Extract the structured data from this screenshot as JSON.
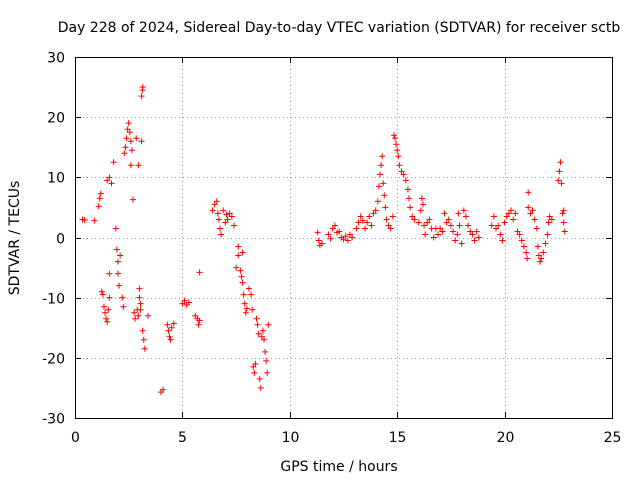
{
  "chart_data": {
    "type": "scatter",
    "title": "Day 228 of 2024, Sidereal Day-to-day VTEC variation (SDTVAR) for receiver sctb",
    "xlabel": "GPS time / hours",
    "ylabel": "SDTVAR / TECUs",
    "xlim": [
      0,
      25
    ],
    "ylim": [
      -30,
      30
    ],
    "xticks": [
      "0",
      "5",
      "10",
      "15",
      "20",
      "25"
    ],
    "yticks": [
      "-30",
      "-20",
      "-10",
      "0",
      "10",
      "20",
      "30"
    ],
    "grid": true,
    "marker": "plus",
    "color": "#ff0000",
    "series": [
      {
        "name": "SDTVAR",
        "points": [
          [
            0.35,
            3.0
          ],
          [
            0.45,
            2.9
          ],
          [
            0.9,
            2.8
          ],
          [
            1.1,
            5.2
          ],
          [
            1.15,
            6.5
          ],
          [
            1.2,
            7.3
          ],
          [
            1.25,
            -9.0
          ],
          [
            1.3,
            -9.5
          ],
          [
            1.35,
            -11.5
          ],
          [
            1.4,
            -12.5
          ],
          [
            1.45,
            -13.5
          ],
          [
            1.5,
            -14.0
          ],
          [
            1.55,
            -12.0
          ],
          [
            1.6,
            -10.0
          ],
          [
            1.6,
            -6.0
          ],
          [
            1.5,
            9.5
          ],
          [
            1.6,
            10.0
          ],
          [
            1.7,
            9.0
          ],
          [
            1.8,
            12.5
          ],
          [
            1.9,
            1.5
          ],
          [
            1.95,
            -2.0
          ],
          [
            2.0,
            -4.0
          ],
          [
            2.0,
            -6.0
          ],
          [
            2.05,
            -8.0
          ],
          [
            2.1,
            -3.0
          ],
          [
            2.2,
            -10.0
          ],
          [
            2.25,
            -11.5
          ],
          [
            2.3,
            14.0
          ],
          [
            2.35,
            15.0
          ],
          [
            2.4,
            16.5
          ],
          [
            2.45,
            18.0
          ],
          [
            2.5,
            19.0
          ],
          [
            2.55,
            17.5
          ],
          [
            2.6,
            16.0
          ],
          [
            2.65,
            14.5
          ],
          [
            2.6,
            12.0
          ],
          [
            2.7,
            6.3
          ],
          [
            2.75,
            -12.5
          ],
          [
            2.8,
            -13.5
          ],
          [
            2.85,
            16.5
          ],
          [
            2.9,
            -12.0
          ],
          [
            2.95,
            -13.0
          ],
          [
            2.95,
            12.0
          ],
          [
            3.0,
            -8.5
          ],
          [
            3.0,
            -10.0
          ],
          [
            3.05,
            -11.0
          ],
          [
            3.05,
            -12.0
          ],
          [
            3.1,
            23.5
          ],
          [
            3.15,
            24.5
          ],
          [
            3.15,
            25.0
          ],
          [
            3.1,
            16.0
          ],
          [
            3.15,
            -15.5
          ],
          [
            3.2,
            -17.0
          ],
          [
            3.25,
            -18.5
          ],
          [
            3.4,
            -13.0
          ],
          [
            4.0,
            -25.7
          ],
          [
            4.1,
            -25.3
          ],
          [
            4.3,
            -14.5
          ],
          [
            4.35,
            -15.5
          ],
          [
            4.4,
            -16.5
          ],
          [
            4.45,
            -17.0
          ],
          [
            4.5,
            -15.0
          ],
          [
            4.6,
            -14.3
          ],
          [
            5.0,
            -11.0
          ],
          [
            5.1,
            -10.5
          ],
          [
            5.2,
            -11.2
          ],
          [
            5.3,
            -10.8
          ],
          [
            5.6,
            -13.0
          ],
          [
            5.7,
            -13.5
          ],
          [
            5.75,
            -14.5
          ],
          [
            5.8,
            -13.8
          ],
          [
            5.8,
            -5.8
          ],
          [
            6.4,
            4.5
          ],
          [
            6.5,
            5.5
          ],
          [
            6.6,
            6.0
          ],
          [
            6.65,
            4.0
          ],
          [
            6.7,
            3.0
          ],
          [
            6.75,
            1.5
          ],
          [
            6.8,
            0.5
          ],
          [
            6.9,
            4.5
          ],
          [
            7.0,
            2.5
          ],
          [
            7.05,
            3.8
          ],
          [
            7.1,
            3.0
          ],
          [
            7.2,
            4.0
          ],
          [
            7.3,
            3.5
          ],
          [
            7.4,
            2.0
          ],
          [
            7.5,
            -5.0
          ],
          [
            7.6,
            -3.0
          ],
          [
            7.6,
            -1.5
          ],
          [
            7.7,
            -5.5
          ],
          [
            7.75,
            -6.5
          ],
          [
            7.8,
            -7.5
          ],
          [
            7.8,
            -2.5
          ],
          [
            7.85,
            -9.5
          ],
          [
            7.9,
            -11.0
          ],
          [
            7.95,
            -12.5
          ],
          [
            8.0,
            -11.8
          ],
          [
            8.1,
            -8.5
          ],
          [
            8.2,
            -9.5
          ],
          [
            8.25,
            -12.0
          ],
          [
            8.3,
            -21.5
          ],
          [
            8.35,
            -22.5
          ],
          [
            8.4,
            -21.0
          ],
          [
            8.45,
            -13.5
          ],
          [
            8.5,
            -14.5
          ],
          [
            8.55,
            -16.0
          ],
          [
            8.6,
            -23.5
          ],
          [
            8.65,
            -25.0
          ],
          [
            8.7,
            -16.5
          ],
          [
            8.75,
            -15.5
          ],
          [
            8.8,
            -17.0
          ],
          [
            8.85,
            -19.0
          ],
          [
            8.9,
            -20.5
          ],
          [
            8.95,
            -22.5
          ],
          [
            9.0,
            -14.5
          ],
          [
            11.3,
            0.8
          ],
          [
            11.35,
            -0.5
          ],
          [
            11.4,
            -1.3
          ],
          [
            11.5,
            -1.0
          ],
          [
            11.8,
            0.5
          ],
          [
            11.9,
            -0.2
          ],
          [
            12.0,
            1.5
          ],
          [
            12.1,
            2.0
          ],
          [
            12.2,
            0.8
          ],
          [
            12.3,
            1.0
          ],
          [
            12.4,
            0.0
          ],
          [
            12.5,
            -0.3
          ],
          [
            12.6,
            0.2
          ],
          [
            12.7,
            -0.5
          ],
          [
            12.8,
            0.5
          ],
          [
            12.9,
            0.0
          ],
          [
            13.1,
            1.5
          ],
          [
            13.2,
            2.5
          ],
          [
            13.3,
            3.5
          ],
          [
            13.4,
            2.8
          ],
          [
            13.5,
            1.5
          ],
          [
            13.6,
            2.5
          ],
          [
            13.7,
            3.5
          ],
          [
            13.8,
            2.0
          ],
          [
            13.9,
            4.0
          ],
          [
            14.0,
            4.5
          ],
          [
            14.1,
            6.0
          ],
          [
            14.15,
            8.5
          ],
          [
            14.2,
            10.5
          ],
          [
            14.25,
            12.0
          ],
          [
            14.3,
            13.5
          ],
          [
            14.35,
            9.0
          ],
          [
            14.4,
            7.0
          ],
          [
            14.45,
            5.0
          ],
          [
            14.5,
            3.0
          ],
          [
            14.6,
            2.0
          ],
          [
            14.7,
            1.5
          ],
          [
            14.8,
            3.5
          ],
          [
            14.85,
            17.0
          ],
          [
            14.9,
            16.5
          ],
          [
            14.95,
            15.5
          ],
          [
            15.0,
            14.5
          ],
          [
            15.05,
            13.5
          ],
          [
            15.1,
            12.0
          ],
          [
            15.2,
            11.0
          ],
          [
            15.3,
            10.5
          ],
          [
            15.4,
            9.5
          ],
          [
            15.5,
            8.0
          ],
          [
            15.55,
            6.5
          ],
          [
            15.6,
            5.0
          ],
          [
            15.7,
            3.5
          ],
          [
            15.8,
            3.0
          ],
          [
            16.0,
            2.5
          ],
          [
            16.1,
            4.5
          ],
          [
            16.15,
            6.5
          ],
          [
            16.2,
            5.5
          ],
          [
            16.25,
            2.0
          ],
          [
            16.3,
            0.5
          ],
          [
            16.4,
            2.5
          ],
          [
            16.5,
            3.0
          ],
          [
            16.6,
            1.5
          ],
          [
            16.7,
            0.0
          ],
          [
            16.8,
            1.5
          ],
          [
            16.9,
            0.5
          ],
          [
            17.0,
            1.5
          ],
          [
            17.1,
            1.0
          ],
          [
            17.2,
            4.0
          ],
          [
            17.3,
            2.5
          ],
          [
            17.4,
            3.0
          ],
          [
            17.5,
            2.0
          ],
          [
            17.6,
            1.0
          ],
          [
            17.7,
            -0.5
          ],
          [
            17.8,
            0.5
          ],
          [
            17.85,
            4.0
          ],
          [
            17.9,
            2.0
          ],
          [
            18.0,
            -1.0
          ],
          [
            18.1,
            4.5
          ],
          [
            18.2,
            3.5
          ],
          [
            18.3,
            2.0
          ],
          [
            18.4,
            1.0
          ],
          [
            18.5,
            0.5
          ],
          [
            18.6,
            -0.5
          ],
          [
            18.7,
            1.0
          ],
          [
            18.8,
            0.0
          ],
          [
            19.4,
            2.0
          ],
          [
            19.5,
            3.5
          ],
          [
            19.6,
            1.5
          ],
          [
            19.7,
            2.0
          ],
          [
            19.8,
            0.5
          ],
          [
            19.9,
            -0.5
          ],
          [
            20.0,
            2.5
          ],
          [
            20.1,
            3.5
          ],
          [
            20.2,
            4.0
          ],
          [
            20.3,
            4.5
          ],
          [
            20.4,
            3.0
          ],
          [
            20.5,
            4.0
          ],
          [
            20.6,
            1.0
          ],
          [
            20.7,
            0.5
          ],
          [
            20.8,
            -0.5
          ],
          [
            20.9,
            -1.5
          ],
          [
            21.0,
            -2.5
          ],
          [
            21.05,
            -3.5
          ],
          [
            21.1,
            5.0
          ],
          [
            21.1,
            7.5
          ],
          [
            21.2,
            4.0
          ],
          [
            21.3,
            4.5
          ],
          [
            21.4,
            3.0
          ],
          [
            21.5,
            1.5
          ],
          [
            21.55,
            -1.5
          ],
          [
            21.6,
            -3.0
          ],
          [
            21.65,
            -4.0
          ],
          [
            21.7,
            -3.5
          ],
          [
            21.8,
            -2.5
          ],
          [
            21.9,
            -1.0
          ],
          [
            22.0,
            0.5
          ],
          [
            22.05,
            2.5
          ],
          [
            22.1,
            3.5
          ],
          [
            22.2,
            3.0
          ],
          [
            22.5,
            9.5
          ],
          [
            22.55,
            11.0
          ],
          [
            22.6,
            12.5
          ],
          [
            22.65,
            9.0
          ],
          [
            22.7,
            4.0
          ],
          [
            22.75,
            2.5
          ],
          [
            22.8,
            1.0
          ],
          [
            22.75,
            4.5
          ]
        ]
      }
    ]
  }
}
